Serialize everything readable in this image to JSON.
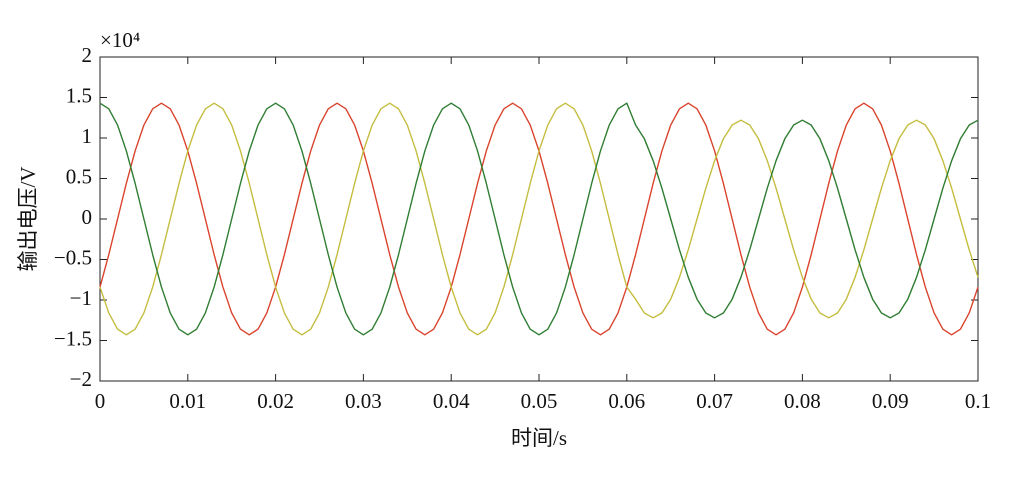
{
  "chart_data": {
    "type": "line",
    "xlabel": "时间/s",
    "ylabel": "输出电压/V",
    "y_multiplier": "×10⁴",
    "xlim": [
      0,
      0.1
    ],
    "xticks": [
      0,
      0.01,
      0.02,
      0.03,
      0.04,
      0.05,
      0.06,
      0.07,
      0.08,
      0.09,
      0.1
    ],
    "ylim": [
      -2,
      2
    ],
    "yticks": [
      {
        "value": -2,
        "label": "−2"
      },
      {
        "value": -1.5,
        "label": "−1.5"
      },
      {
        "value": -1,
        "label": "−1"
      },
      {
        "value": -0.5,
        "label": "−0.5"
      },
      0,
      0.5,
      1,
      1.5,
      2
    ],
    "x": [
      0,
      0.001,
      0.002,
      0.003,
      0.004,
      0.005,
      0.006,
      0.007,
      0.008,
      0.009,
      0.01,
      0.011,
      0.012,
      0.013,
      0.014,
      0.015,
      0.016,
      0.017,
      0.018,
      0.019,
      0.02,
      0.021,
      0.022,
      0.023,
      0.024,
      0.025,
      0.026,
      0.027,
      0.028,
      0.029,
      0.03,
      0.031,
      0.032,
      0.033,
      0.034,
      0.035,
      0.036,
      0.037,
      0.038,
      0.039,
      0.04,
      0.041,
      0.042,
      0.043,
      0.044,
      0.045,
      0.046,
      0.047,
      0.048,
      0.049,
      0.05,
      0.051,
      0.052,
      0.053,
      0.054,
      0.055,
      0.056,
      0.057,
      0.058,
      0.059,
      0.06,
      0.061,
      0.062,
      0.063,
      0.064,
      0.065,
      0.066,
      0.067,
      0.068,
      0.069,
      0.07,
      0.071,
      0.072,
      0.073,
      0.074,
      0.075,
      0.076,
      0.077,
      0.078,
      0.079,
      0.08,
      0.081,
      0.082,
      0.083,
      0.084,
      0.085,
      0.086,
      0.087,
      0.088,
      0.089,
      0.09,
      0.091,
      0.092,
      0.093,
      0.094,
      0.095,
      0.096,
      0.097,
      0.098,
      0.099,
      0.1
    ],
    "series": [
      {
        "color": "#d9432c",
        "values": [
          -0.84,
          -0.44,
          0,
          0.44,
          0.84,
          1.16,
          1.36,
          1.43,
          1.36,
          1.16,
          0.84,
          0.44,
          0,
          -0.44,
          -0.84,
          -1.16,
          -1.36,
          -1.43,
          -1.36,
          -1.16,
          -0.84,
          -0.44,
          0,
          0.44,
          0.84,
          1.16,
          1.36,
          1.43,
          1.36,
          1.16,
          0.84,
          0.44,
          0,
          -0.44,
          -0.84,
          -1.16,
          -1.36,
          -1.43,
          -1.36,
          -1.16,
          -0.84,
          -0.44,
          0,
          0.44,
          0.84,
          1.16,
          1.36,
          1.43,
          1.36,
          1.16,
          0.84,
          0.44,
          0,
          -0.44,
          -0.84,
          -1.16,
          -1.36,
          -1.43,
          -1.36,
          -1.16,
          -0.84,
          -0.44,
          0,
          0.44,
          0.84,
          1.16,
          1.36,
          1.43,
          1.36,
          1.16,
          0.84,
          0.44,
          0,
          -0.44,
          -0.84,
          -1.16,
          -1.36,
          -1.43,
          -1.36,
          -1.16,
          -0.84,
          -0.44,
          0,
          0.44,
          0.84,
          1.16,
          1.36,
          1.43,
          1.36,
          1.16,
          0.84,
          0.44,
          0,
          -0.44,
          -0.84,
          -1.16,
          -1.36,
          -1.43,
          -1.36,
          -1.16,
          -0.84
        ]
      },
      {
        "color": "#c4bd3f",
        "values": [
          -0.84,
          -1.16,
          -1.36,
          -1.43,
          -1.36,
          -1.16,
          -0.84,
          -0.44,
          0,
          0.44,
          0.84,
          1.16,
          1.36,
          1.43,
          1.36,
          1.16,
          0.84,
          0.44,
          0,
          -0.44,
          -0.84,
          -1.16,
          -1.36,
          -1.43,
          -1.36,
          -1.16,
          -0.84,
          -0.44,
          0,
          0.44,
          0.84,
          1.16,
          1.36,
          1.43,
          1.36,
          1.16,
          0.84,
          0.44,
          0,
          -0.44,
          -0.84,
          -1.16,
          -1.36,
          -1.43,
          -1.36,
          -1.16,
          -0.84,
          -0.44,
          0,
          0.44,
          0.84,
          1.16,
          1.36,
          1.43,
          1.36,
          1.16,
          0.84,
          0.44,
          0,
          -0.44,
          -0.84,
          -0.99,
          -1.16,
          -1.22,
          -1.16,
          -0.99,
          -0.72,
          -0.38,
          0,
          0.38,
          0.72,
          0.99,
          1.16,
          1.22,
          1.16,
          0.99,
          0.72,
          0.38,
          0,
          -0.38,
          -0.72,
          -0.99,
          -1.16,
          -1.22,
          -1.16,
          -0.99,
          -0.72,
          -0.38,
          0,
          0.38,
          0.72,
          0.99,
          1.16,
          1.22,
          1.16,
          0.99,
          0.72,
          0.38,
          0,
          -0.38,
          -0.72
        ]
      },
      {
        "color": "#2f7d32",
        "values": [
          1.43,
          1.36,
          1.16,
          0.84,
          0.44,
          0,
          -0.44,
          -0.84,
          -1.16,
          -1.36,
          -1.43,
          -1.36,
          -1.16,
          -0.84,
          -0.44,
          0,
          0.44,
          0.84,
          1.16,
          1.36,
          1.43,
          1.36,
          1.16,
          0.84,
          0.44,
          0,
          -0.44,
          -0.84,
          -1.16,
          -1.36,
          -1.43,
          -1.36,
          -1.16,
          -0.84,
          -0.44,
          0,
          0.44,
          0.84,
          1.16,
          1.36,
          1.43,
          1.36,
          1.16,
          0.84,
          0.44,
          0,
          -0.44,
          -0.84,
          -1.16,
          -1.36,
          -1.43,
          -1.36,
          -1.16,
          -0.84,
          -0.44,
          0,
          0.44,
          0.84,
          1.16,
          1.36,
          1.43,
          1.16,
          0.99,
          0.72,
          0.38,
          0,
          -0.38,
          -0.72,
          -0.99,
          -1.16,
          -1.22,
          -1.16,
          -0.99,
          -0.72,
          -0.38,
          0,
          0.38,
          0.72,
          0.99,
          1.16,
          1.22,
          1.16,
          0.99,
          0.72,
          0.38,
          0,
          -0.38,
          -0.72,
          -0.99,
          -1.16,
          -1.22,
          -1.16,
          -0.99,
          -0.72,
          -0.38,
          0,
          0.38,
          0.72,
          0.99,
          1.16,
          1.22
        ]
      }
    ]
  }
}
